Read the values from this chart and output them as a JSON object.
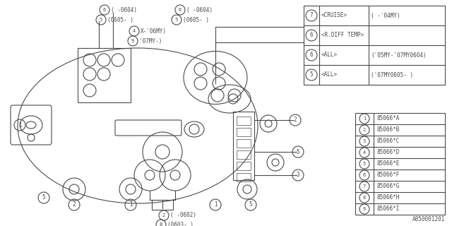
{
  "doc_number": "A850001201",
  "bg_color": "#ffffff",
  "line_color": "#4a4a4a",
  "table1": {
    "rows": [
      {
        "num": "7",
        "label": "<CRUISE>",
        "note": "( -'04MY)"
      },
      {
        "num": "6",
        "label": "<R.DIFF TEMP>",
        "note": ""
      },
      {
        "num": "6",
        "label": "<ALL>",
        "note": "('05MY-'07MY0604)"
      },
      {
        "num": "5",
        "label": "<ALL>",
        "note": "('07MY0605- )"
      }
    ]
  },
  "table2": {
    "rows": [
      {
        "num": "1",
        "label": "85066*A"
      },
      {
        "num": "2",
        "label": "85066*B"
      },
      {
        "num": "3",
        "label": "85066*C"
      },
      {
        "num": "4",
        "label": "85066*D"
      },
      {
        "num": "5",
        "label": "85066*E"
      },
      {
        "num": "6",
        "label": "85066*F"
      },
      {
        "num": "7",
        "label": "85066*G"
      },
      {
        "num": "8",
        "label": "85066*H"
      },
      {
        "num": "9",
        "label": "85066*I"
      }
    ]
  }
}
